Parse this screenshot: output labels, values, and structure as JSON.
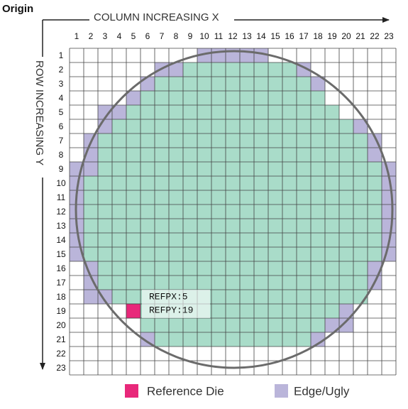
{
  "origin_label": "Origin",
  "x_axis_label": "COLUMN INCREASING X",
  "y_axis_label": "ROW INCREASING Y",
  "columns": [
    1,
    2,
    3,
    4,
    5,
    6,
    7,
    8,
    9,
    10,
    11,
    12,
    13,
    14,
    15,
    16,
    17,
    18,
    19,
    20,
    21,
    22,
    23
  ],
  "rows": [
    1,
    2,
    3,
    4,
    5,
    6,
    7,
    8,
    9,
    10,
    11,
    12,
    13,
    14,
    15,
    16,
    17,
    18,
    19,
    20,
    21,
    22,
    23
  ],
  "wafer_map": {
    "colors": {
      "good": "#a9dcc9",
      "edge": "#bab5da",
      "reference": "#e8287a",
      "circle": "#6b6b6b"
    },
    "rows": [
      {
        "edge": [
          10,
          11,
          12,
          13,
          14
        ],
        "good": null
      },
      {
        "edge": [
          7,
          8,
          17
        ],
        "good": [
          9,
          16
        ]
      },
      {
        "edge": [
          6,
          18
        ],
        "good": [
          7,
          17
        ]
      },
      {
        "edge": [
          5
        ],
        "good": [
          6,
          18
        ]
      },
      {
        "edge": [
          3,
          4
        ],
        "good": [
          5,
          19
        ]
      },
      {
        "edge": [
          3,
          21
        ],
        "good": [
          4,
          20
        ]
      },
      {
        "edge": [
          2,
          22
        ],
        "good": [
          3,
          21
        ]
      },
      {
        "edge": [
          2,
          22
        ],
        "good": [
          3,
          21
        ]
      },
      {
        "edge": [
          1,
          2,
          23
        ],
        "good": [
          3,
          22
        ]
      },
      {
        "edge": [
          1,
          23
        ],
        "good": [
          2,
          22
        ]
      },
      {
        "edge": [
          1,
          23
        ],
        "good": [
          2,
          22
        ]
      },
      {
        "edge": [
          1,
          23
        ],
        "good": [
          2,
          22
        ]
      },
      {
        "edge": [
          1,
          23
        ],
        "good": [
          2,
          22
        ]
      },
      {
        "edge": [
          1,
          23
        ],
        "good": [
          2,
          22
        ]
      },
      {
        "edge": [
          1,
          23
        ],
        "good": [
          2,
          22
        ]
      },
      {
        "edge": [
          2,
          22
        ],
        "good": [
          3,
          21
        ]
      },
      {
        "edge": [
          2,
          22
        ],
        "good": [
          3,
          21
        ]
      },
      {
        "edge": [
          2,
          3
        ],
        "good": [
          4,
          21
        ]
      },
      {
        "edge": [
          20
        ],
        "good": [
          6,
          19
        ]
      },
      {
        "edge": [
          19,
          20
        ],
        "good": [
          6,
          18
        ]
      },
      {
        "edge": [
          6,
          18
        ],
        "good": [
          7,
          17
        ]
      },
      {
        "edge": [],
        "good": null
      },
      {
        "edge": [],
        "good": null
      }
    ],
    "reference_die": {
      "row": 19,
      "column": 5
    }
  },
  "annotation": [
    "REFPX:5",
    "REFPY:19"
  ],
  "legend": [
    "Reference Die",
    "Edge/Ugly"
  ]
}
